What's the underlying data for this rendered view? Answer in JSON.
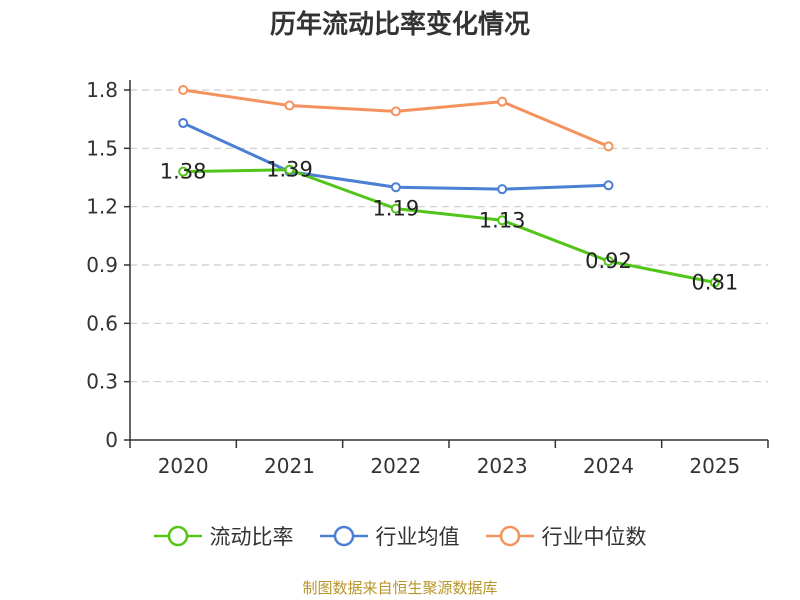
{
  "chart_data": {
    "type": "line",
    "title": "历年流动比率变化情况",
    "categories": [
      "2020",
      "2021",
      "2022",
      "2023",
      "2024",
      "2025"
    ],
    "yticks": [
      "0",
      "0.3",
      "0.6",
      "0.9",
      "1.2",
      "1.5",
      "1.8"
    ],
    "ylim": [
      0,
      1.8
    ],
    "grid": "dashed-horizontal",
    "legend_position": "bottom",
    "series": [
      {
        "name": "流动比率",
        "color": "#52c41a",
        "values": [
          1.38,
          1.39,
          1.19,
          1.13,
          0.92,
          0.81
        ],
        "labels": [
          "1.38",
          "1.39",
          "1.19",
          "1.13",
          "0.92",
          "0.81"
        ]
      },
      {
        "name": "行业均值",
        "color": "#4a7fd4",
        "values": [
          1.63,
          1.38,
          1.3,
          1.29,
          1.31,
          null
        ]
      },
      {
        "name": "行业中位数",
        "color": "#f4925e",
        "values": [
          1.8,
          1.72,
          1.69,
          1.74,
          1.51,
          null
        ]
      }
    ]
  },
  "source": "制图数据来自恒生聚源数据库"
}
